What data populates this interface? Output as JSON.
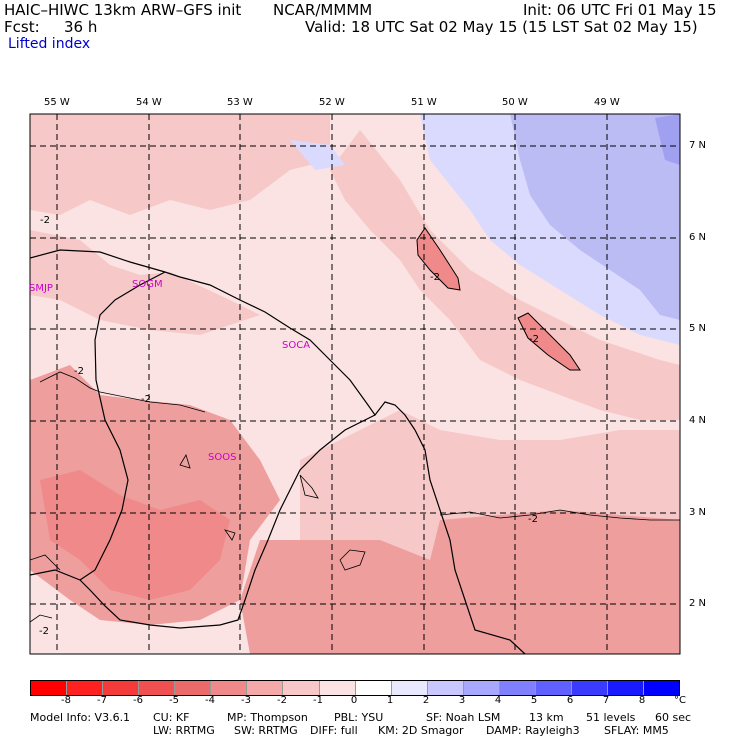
{
  "header": {
    "model_title": "HAIC–HIWC 13km ARW–GFS init",
    "org": "NCAR/MMMM",
    "init": "Init: 06 UTC Fri 01 May 15",
    "fcst_label": "Fcst:",
    "fcst_value": "36 h",
    "valid": "Valid: 18 UTC Sat 02 May 15 (15 LST Sat 02 May 15)",
    "field": "Lifted index"
  },
  "map": {
    "lon_labels": [
      "55 W",
      "54 W",
      "53 W",
      "52 W",
      "51 W",
      "50 W",
      "49 W"
    ],
    "lat_labels": [
      "7 N",
      "6 N",
      "5 N",
      "4 N",
      "3 N",
      "2 N"
    ],
    "stations": [
      "SMJP",
      "SOGM",
      "SOCA",
      "SOOS"
    ],
    "contour_label": "-2",
    "colors": {
      "light_pink": "#fbe3e3",
      "pink": "#f6c8c8",
      "salmon": "#ef9e9e",
      "light_blue": "#dadaff",
      "blue": "#bcbcf5",
      "station": "#cc00cc"
    }
  },
  "colorbar": {
    "ticks": [
      "-8",
      "-7",
      "-6",
      "-5",
      "-4",
      "-3",
      "-2",
      "-1",
      "0",
      "1",
      "2",
      "3",
      "4",
      "5",
      "6",
      "7",
      "8"
    ],
    "unit": "°C",
    "colors": [
      "#ff0000",
      "#ff2020",
      "#f53a3a",
      "#f05050",
      "#ec6a6a",
      "#f08a8a",
      "#f5a8a8",
      "#f8c8c8",
      "#fbe3e3",
      "#ffffff",
      "#e8e8ff",
      "#c8c8ff",
      "#a8a8ff",
      "#8080ff",
      "#6060ff",
      "#3b3bff",
      "#1a1aff",
      "#0000ff"
    ]
  },
  "footer": {
    "line1": [
      "Model Info: V3.6.1",
      "CU: KF",
      "MP: Thompson",
      "PBL: YSU",
      "SF: Noah LSM",
      "13 km",
      "51 levels",
      "60 sec"
    ],
    "line2": [
      "LW: RRTMG",
      "SW: RRTMG",
      "DIFF: full",
      "KM: 2D Smagor",
      "DAMP: Rayleigh3",
      "SFLAY: MM5"
    ]
  }
}
